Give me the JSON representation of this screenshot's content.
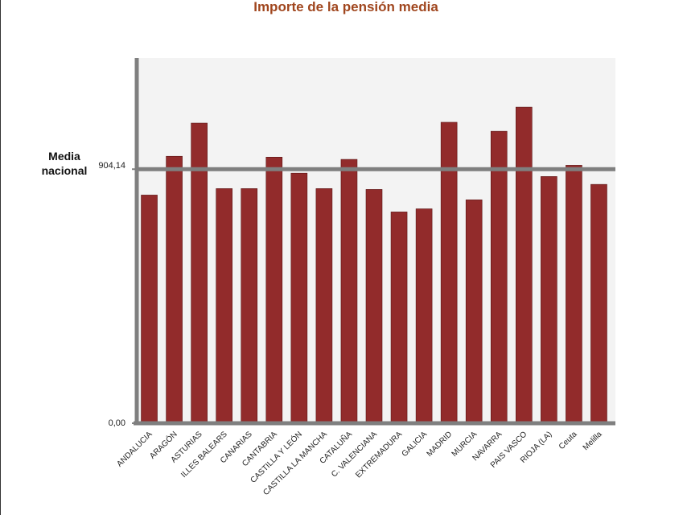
{
  "chart_data": {
    "type": "bar",
    "title": "Importe de la pensión media",
    "categories": [
      "ANDALUCIA",
      "ARAGÓN",
      "ASTURIAS",
      "ILLES BALEARS",
      "CANARIAS",
      "CANTABRIA",
      "CASTILLA Y LEÓN",
      "CASTILLA LA MANCHA",
      "CATALUÑA",
      "C. VALENCIANA",
      "EXTREMADURA",
      "GALICIA",
      "MADRID",
      "MURCIA",
      "NAVARRA",
      "PAIS VASCO",
      "RIOJA (LA)",
      "Ceuta",
      "Melilla"
    ],
    "values": [
      812,
      950,
      1068,
      835,
      835,
      947,
      890,
      835,
      939,
      832,
      752,
      763,
      1071,
      795,
      1039,
      1125,
      878,
      918,
      850
    ],
    "color": "#922b2b",
    "ylim": [
      0,
      1300
    ],
    "yticks": [
      {
        "value": 0,
        "label": "0,00"
      },
      {
        "value": 904.14,
        "label": "904,14"
      }
    ],
    "reference_line": {
      "label": "Media nacional",
      "value": 904.14
    }
  }
}
